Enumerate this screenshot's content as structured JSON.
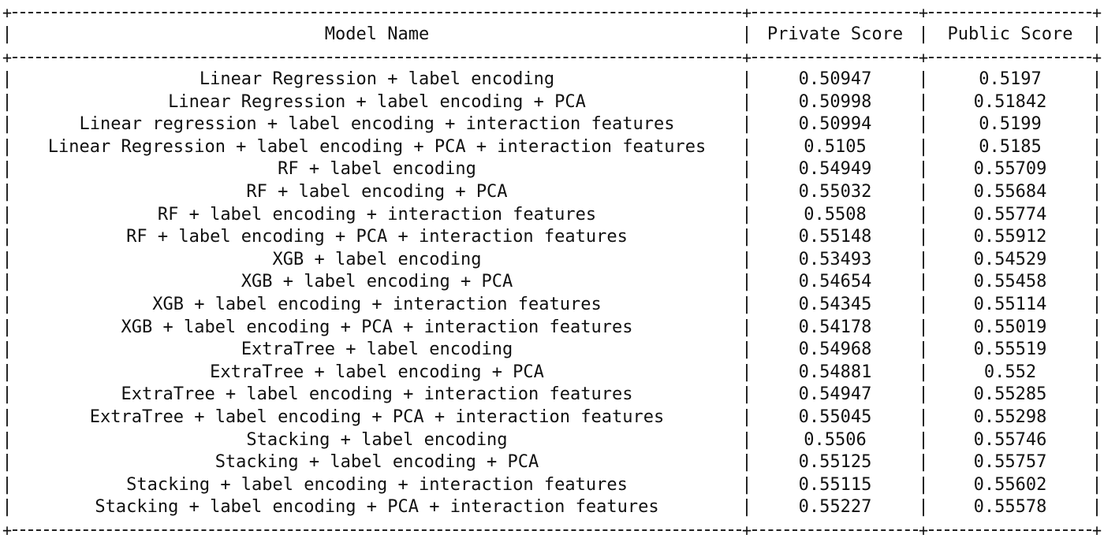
{
  "table": {
    "headers": {
      "model_name": "Model Name",
      "private_score": "Private Score",
      "public_score": "Public Score"
    },
    "rows": [
      {
        "model": "Linear Regression + label encoding",
        "private": "0.50947",
        "public": "0.5197"
      },
      {
        "model": "Linear Regression + label encoding + PCA",
        "private": "0.50998",
        "public": "0.51842"
      },
      {
        "model": "Linear regression + label encoding + interaction features",
        "private": "0.50994",
        "public": "0.5199"
      },
      {
        "model": "Linear Regression + label encoding + PCA + interaction features",
        "private": "0.5105",
        "public": "0.5185"
      },
      {
        "model": "RF + label encoding",
        "private": "0.54949",
        "public": "0.55709"
      },
      {
        "model": "RF + label encoding + PCA",
        "private": "0.55032",
        "public": "0.55684"
      },
      {
        "model": "RF + label encoding + interaction features",
        "private": "0.5508",
        "public": "0.55774"
      },
      {
        "model": "RF + label encoding + PCA + interaction features",
        "private": "0.55148",
        "public": "0.55912"
      },
      {
        "model": "XGB + label encoding",
        "private": "0.53493",
        "public": "0.54529"
      },
      {
        "model": "XGB + label encoding + PCA",
        "private": "0.54654",
        "public": "0.55458"
      },
      {
        "model": "XGB + label encoding + interaction features",
        "private": "0.54345",
        "public": "0.55114"
      },
      {
        "model": "XGB + label encoding + PCA + interaction features",
        "private": "0.54178",
        "public": "0.55019"
      },
      {
        "model": "ExtraTree + label encoding",
        "private": "0.54968",
        "public": "0.55519"
      },
      {
        "model": "ExtraTree + label encoding + PCA",
        "private": "0.54881",
        "public": "0.552"
      },
      {
        "model": "ExtraTree + label encoding + interaction features",
        "private": "0.54947",
        "public": "0.55285"
      },
      {
        "model": "ExtraTree + label encoding + PCA + interaction features",
        "private": "0.55045",
        "public": "0.55298"
      },
      {
        "model": "Stacking + label encoding",
        "private": "0.5506",
        "public": "0.55746"
      },
      {
        "model": "Stacking + label encoding + PCA",
        "private": "0.55125",
        "public": "0.55757"
      },
      {
        "model": "Stacking + label encoding + interaction features",
        "private": "0.55115",
        "public": "0.55602"
      },
      {
        "model": "Stacking + label encoding + PCA + interaction features",
        "private": "0.55227",
        "public": "0.55578"
      }
    ]
  }
}
